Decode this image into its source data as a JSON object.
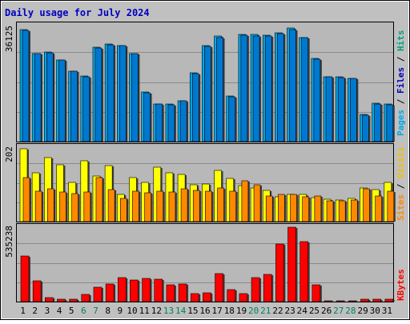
{
  "title": "Daily usage for July 2024",
  "colors": {
    "frame_bg": "#c0c0c0",
    "plot_bg": "#b8b8b8",
    "title_color": "#0000c0",
    "hits_bar": "#00a8e8",
    "files_bar": "#0078d0",
    "visits_bar": "#ffff00",
    "sites_bar": "#ff8800",
    "kbytes_bar": "#ff0000",
    "weekend_label": "#008060",
    "weekday_label": "#000000",
    "gridline": "#8a8a8a",
    "hits_label": "#00a080",
    "files_label": "#0000c0",
    "pages_label": "#00a8e8",
    "visits_label": "#f0c000",
    "sites_label": "#ff8800",
    "kbytes_label": "#ff0000"
  },
  "panels": {
    "hits": {
      "max_label": "36125",
      "side_labels": [
        "Pages",
        "Files",
        "Hits"
      ]
    },
    "visits": {
      "max_label": "202",
      "side_labels": [
        "Sites",
        "Visits"
      ]
    },
    "kbytes": {
      "max_label": "535238",
      "side_labels": [
        "KBytes"
      ]
    }
  },
  "chart_data": {
    "type": "bar",
    "title": "Daily usage for July 2024",
    "categories": [
      "1",
      "2",
      "3",
      "4",
      "5",
      "6",
      "7",
      "8",
      "9",
      "10",
      "11",
      "12",
      "13",
      "14",
      "15",
      "16",
      "17",
      "18",
      "19",
      "20",
      "21",
      "22",
      "23",
      "24",
      "25",
      "26",
      "27",
      "28",
      "29",
      "30",
      "31"
    ],
    "weekend_days": [
      6,
      7,
      13,
      14,
      20,
      21,
      27,
      28
    ],
    "panels": [
      {
        "name": "hits_files_pages",
        "max": 36125,
        "series": [
          {
            "name": "Hits",
            "values": [
              35000,
              27500,
              28000,
              25500,
              22000,
              20500,
              29500,
              30500,
              30000,
              27500,
              15500,
              11800,
              11600,
              12800,
              21500,
              30000,
              32800,
              14200,
              33500,
              33300,
              33200,
              33800,
              35300,
              32500,
              25800,
              20300,
              20200,
              19800,
              8500,
              12000,
              11600
            ]
          },
          {
            "name": "Files",
            "values": [
              34700,
              27300,
              27600,
              25300,
              21800,
              20300,
              29200,
              30200,
              29800,
              27300,
              15300,
              11700,
              11500,
              12600,
              21300,
              29700,
              32500,
              14000,
              33200,
              33000,
              33000,
              33600,
              35000,
              32300,
              25600,
              20100,
              20000,
              19600,
              8300,
              11800,
              11400
            ]
          },
          {
            "name": "Pages",
            "values": [
              0,
              0,
              0,
              0,
              0,
              0,
              0,
              0,
              0,
              0,
              0,
              0,
              0,
              0,
              0,
              0,
              0,
              0,
              0,
              0,
              0,
              0,
              0,
              0,
              0,
              0,
              0,
              0,
              0,
              0,
              0
            ]
          }
        ]
      },
      {
        "name": "visits_sites",
        "max": 202,
        "series": [
          {
            "name": "Visits",
            "values": [
              198,
              133,
              173,
              155,
              107,
              166,
              123,
              151,
              73,
              120,
              107,
              148,
              133,
              128,
              99,
              103,
              140,
              118,
              98,
              92,
              85,
              68,
              74,
              74,
              66,
              60,
              58,
              63,
              91,
              87,
              106
            ]
          },
          {
            "name": "Sites",
            "values": [
              119,
              82,
              89,
              81,
              76,
              81,
              120,
              87,
              64,
              83,
              79,
              82,
              80,
              88,
              84,
              82,
              91,
              82,
              111,
              100,
              69,
              73,
              74,
              67,
              70,
              56,
              57,
              59,
              90,
              70,
              83
            ]
          }
        ]
      },
      {
        "name": "kbytes",
        "max": 535238,
        "series": [
          {
            "name": "KBytes",
            "values": [
              330000,
              148000,
              30000,
              16000,
              15000,
              52000,
              102000,
              124000,
              175000,
              155000,
              165000,
              160000,
              120000,
              124000,
              60000,
              65000,
              199000,
              88000,
              59000,
              174000,
              195000,
              414000,
              536000,
              430000,
              122000,
              8000,
              8000,
              8000,
              16000,
              16000,
              16000
            ]
          }
        ]
      }
    ]
  }
}
